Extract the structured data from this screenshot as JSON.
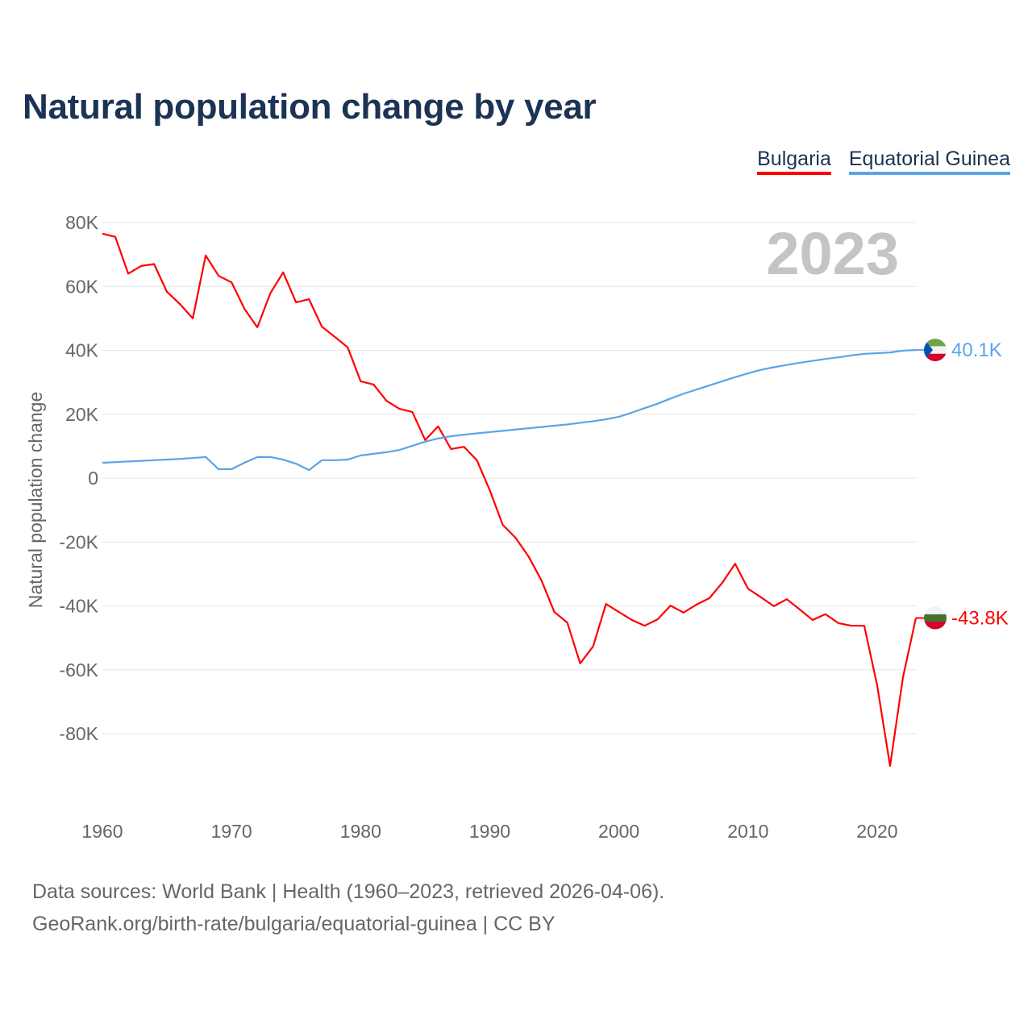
{
  "title": "Natural population change by year",
  "legend": [
    {
      "name": "Bulgaria",
      "color": "#ff0000"
    },
    {
      "name": "Equatorial Guinea",
      "color": "#5ba4e8"
    }
  ],
  "year_watermark": "2023",
  "footer": {
    "line1": "Data sources: World Bank | Health (1960–2023, retrieved 2026-04-06).",
    "line2": "GeoRank.org/birth-rate/bulgaria/equatorial-guinea | CC BY"
  },
  "chart_data": {
    "type": "line",
    "title": "Natural population change by year",
    "xlabel": "",
    "ylabel": "Natural population change",
    "xlim": [
      1960,
      2023
    ],
    "ylim": [
      -100000,
      80000
    ],
    "grid": true,
    "legend_position": "top-right",
    "x_ticks": [
      1960,
      1970,
      1980,
      1990,
      2000,
      2010,
      2020
    ],
    "x_tick_labels": [
      "1960",
      "1970",
      "1980",
      "1990",
      "2000",
      "2010",
      "2020"
    ],
    "y_ticks": [
      80000,
      60000,
      40000,
      20000,
      0,
      -20000,
      -40000,
      -60000,
      -80000
    ],
    "y_tick_labels": [
      "80K",
      "60K",
      "40K",
      "20K",
      "0",
      "-20K",
      "-40K",
      "-60K",
      "-80K"
    ],
    "x_start": 1960,
    "series": [
      {
        "name": "Bulgaria",
        "color": "#ff0000",
        "end_label": "-43.8K",
        "flag_colors": [
          "#f2f2f2",
          "#4a7030",
          "#d80027"
        ],
        "values": [
          76500,
          75500,
          64000,
          66400,
          67000,
          58300,
          54500,
          50000,
          69700,
          63300,
          61300,
          53000,
          47200,
          57800,
          64400,
          55000,
          56000,
          47400,
          44200,
          40900,
          30300,
          29300,
          24200,
          21700,
          20700,
          11900,
          16200,
          9100,
          9800,
          5600,
          -3800,
          -14600,
          -18700,
          -24500,
          -32000,
          -41900,
          -45200,
          -58000,
          -52700,
          -39400,
          -41900,
          -44400,
          -46200,
          -44200,
          -39900,
          -42100,
          -39600,
          -37600,
          -32800,
          -26800,
          -34600,
          -37300,
          -40100,
          -37900,
          -41100,
          -44400,
          -42600,
          -45400,
          -46200,
          -46200,
          -64900,
          -90100,
          -62300,
          -43800
        ]
      },
      {
        "name": "Equatorial Guinea",
        "color": "#5ba4e8",
        "end_label": "40.1K",
        "flag_colors": [
          "#6da544",
          "#f2f2f2",
          "#d80027",
          "#0052b4"
        ],
        "values": [
          4800,
          5000,
          5200,
          5400,
          5600,
          5800,
          6000,
          6300,
          6600,
          2800,
          2800,
          4800,
          6600,
          6600,
          5800,
          4500,
          2500,
          5600,
          5600,
          5800,
          7100,
          7600,
          8100,
          8800,
          10100,
          11400,
          12400,
          13100,
          13600,
          14000,
          14400,
          14800,
          15200,
          15600,
          16000,
          16400,
          16800,
          17300,
          17800,
          18400,
          19200,
          20500,
          21900,
          23300,
          24900,
          26400,
          27700,
          29000,
          30300,
          31600,
          32800,
          33900,
          34700,
          35400,
          36100,
          36700,
          37300,
          37800,
          38400,
          38900,
          39100,
          39300,
          39900,
          40100
        ]
      }
    ]
  }
}
